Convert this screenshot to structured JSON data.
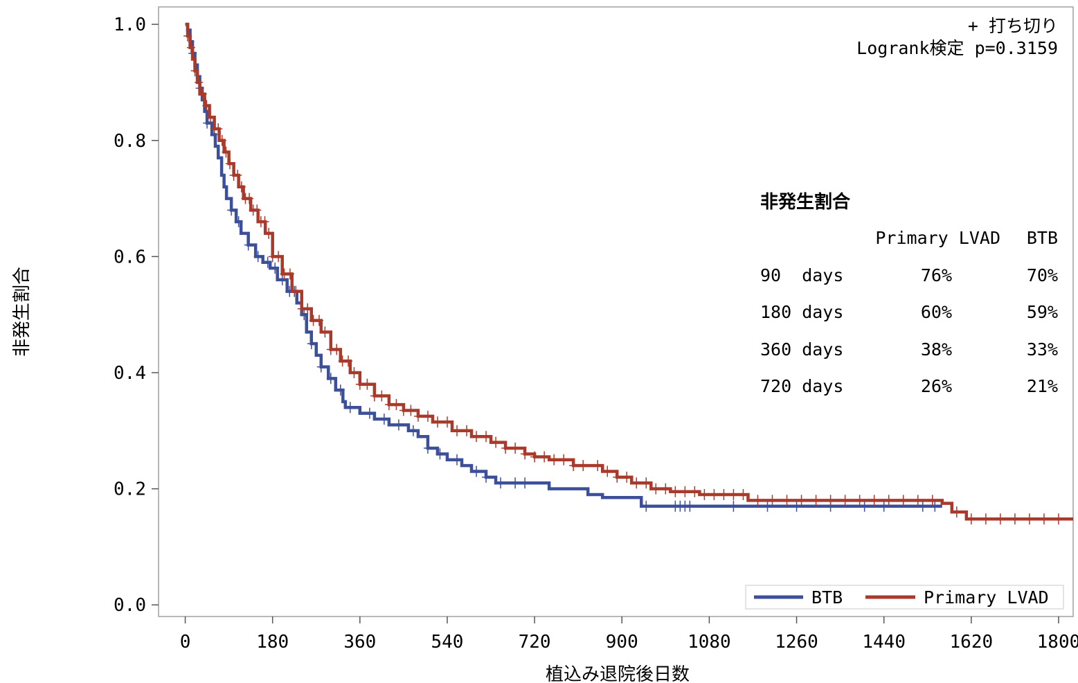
{
  "chart_data": {
    "type": "line",
    "xlabel": "植込み退院後日数",
    "ylabel": "非発生割合",
    "xlim": [
      -55,
      1830
    ],
    "ylim": [
      -0.02,
      1.03
    ],
    "x_ticks": [
      "0",
      "180",
      "360",
      "540",
      "720",
      "900",
      "1080",
      "1260",
      "1440",
      "1620",
      "1800"
    ],
    "y_ticks": [
      "0.0",
      "0.2",
      "0.4",
      "0.6",
      "0.8",
      "1.0"
    ],
    "censor_note": "+ 打ち切り",
    "test_note": "Logrank検定 p=0.3159",
    "legend": {
      "position": "bottom-right",
      "items": [
        "BTB",
        "Primary LVAD"
      ]
    },
    "table": {
      "title": "非発生割合",
      "headers": [
        "",
        "Primary LVAD",
        "BTB"
      ],
      "rows": [
        {
          "label": "90  days",
          "primary": "76%",
          "btb": "70%"
        },
        {
          "label": "180 days",
          "primary": "60%",
          "btb": "59%"
        },
        {
          "label": "360 days",
          "primary": "38%",
          "btb": "33%"
        },
        {
          "label": "720 days",
          "primary": "26%",
          "btb": "21%"
        }
      ]
    },
    "series": [
      {
        "name": "BTB",
        "color": "#3c4f9a",
        "points": [
          [
            0,
            1.0
          ],
          [
            5,
            0.99
          ],
          [
            10,
            0.97
          ],
          [
            15,
            0.95
          ],
          [
            20,
            0.93
          ],
          [
            25,
            0.91
          ],
          [
            30,
            0.89
          ],
          [
            35,
            0.87
          ],
          [
            40,
            0.85
          ],
          [
            45,
            0.83
          ],
          [
            55,
            0.81
          ],
          [
            62,
            0.79
          ],
          [
            68,
            0.77
          ],
          [
            75,
            0.74
          ],
          [
            80,
            0.72
          ],
          [
            85,
            0.7
          ],
          [
            95,
            0.68
          ],
          [
            105,
            0.66
          ],
          [
            115,
            0.64
          ],
          [
            130,
            0.62
          ],
          [
            145,
            0.6
          ],
          [
            160,
            0.59
          ],
          [
            175,
            0.58
          ],
          [
            190,
            0.56
          ],
          [
            210,
            0.54
          ],
          [
            230,
            0.52
          ],
          [
            240,
            0.5
          ],
          [
            250,
            0.47
          ],
          [
            260,
            0.45
          ],
          [
            270,
            0.43
          ],
          [
            280,
            0.41
          ],
          [
            295,
            0.39
          ],
          [
            310,
            0.37
          ],
          [
            325,
            0.35
          ],
          [
            330,
            0.34
          ],
          [
            360,
            0.33
          ],
          [
            390,
            0.32
          ],
          [
            420,
            0.31
          ],
          [
            460,
            0.3
          ],
          [
            480,
            0.29
          ],
          [
            500,
            0.27
          ],
          [
            520,
            0.26
          ],
          [
            540,
            0.25
          ],
          [
            570,
            0.24
          ],
          [
            590,
            0.23
          ],
          [
            620,
            0.22
          ],
          [
            640,
            0.21
          ],
          [
            750,
            0.2
          ],
          [
            830,
            0.19
          ],
          [
            860,
            0.185
          ],
          [
            940,
            0.17
          ],
          [
            1560,
            0.17
          ]
        ],
        "censored_x": [
          15,
          30,
          45,
          60,
          95,
          110,
          130,
          150,
          170,
          185,
          200,
          215,
          225,
          245,
          260,
          280,
          300,
          320,
          340,
          380,
          410,
          440,
          470,
          500,
          525,
          560,
          600,
          620,
          650,
          680,
          700,
          950,
          1010,
          1020,
          1030,
          1040,
          1130,
          1200,
          1260,
          1330,
          1400,
          1440,
          1520,
          1545
        ]
      },
      {
        "name": "Primary LVAD",
        "color": "#a93a2b",
        "points": [
          [
            0,
            1.0
          ],
          [
            5,
            0.98
          ],
          [
            10,
            0.96
          ],
          [
            15,
            0.94
          ],
          [
            20,
            0.92
          ],
          [
            25,
            0.9
          ],
          [
            30,
            0.88
          ],
          [
            40,
            0.86
          ],
          [
            50,
            0.84
          ],
          [
            60,
            0.82
          ],
          [
            70,
            0.8
          ],
          [
            80,
            0.78
          ],
          [
            90,
            0.76
          ],
          [
            100,
            0.74
          ],
          [
            110,
            0.72
          ],
          [
            120,
            0.7
          ],
          [
            135,
            0.68
          ],
          [
            150,
            0.66
          ],
          [
            165,
            0.64
          ],
          [
            180,
            0.6
          ],
          [
            200,
            0.57
          ],
          [
            220,
            0.54
          ],
          [
            240,
            0.51
          ],
          [
            260,
            0.49
          ],
          [
            280,
            0.47
          ],
          [
            300,
            0.44
          ],
          [
            320,
            0.42
          ],
          [
            340,
            0.4
          ],
          [
            360,
            0.38
          ],
          [
            390,
            0.36
          ],
          [
            420,
            0.345
          ],
          [
            450,
            0.335
          ],
          [
            480,
            0.325
          ],
          [
            510,
            0.315
          ],
          [
            550,
            0.3
          ],
          [
            590,
            0.29
          ],
          [
            630,
            0.28
          ],
          [
            660,
            0.27
          ],
          [
            700,
            0.26
          ],
          [
            720,
            0.255
          ],
          [
            750,
            0.25
          ],
          [
            800,
            0.24
          ],
          [
            860,
            0.23
          ],
          [
            890,
            0.22
          ],
          [
            920,
            0.21
          ],
          [
            960,
            0.2
          ],
          [
            1000,
            0.195
          ],
          [
            1060,
            0.19
          ],
          [
            1160,
            0.18
          ],
          [
            1560,
            0.175
          ],
          [
            1580,
            0.16
          ],
          [
            1610,
            0.148
          ],
          [
            1830,
            0.148
          ]
        ],
        "censored_x": [
          5,
          12,
          20,
          28,
          36,
          44,
          52,
          60,
          68,
          76,
          84,
          92,
          100,
          108,
          116,
          124,
          132,
          140,
          148,
          156,
          164,
          172,
          180,
          192,
          204,
          216,
          228,
          240,
          252,
          264,
          276,
          288,
          300,
          312,
          324,
          336,
          348,
          360,
          375,
          390,
          405,
          420,
          435,
          450,
          465,
          480,
          500,
          520,
          540,
          560,
          580,
          600,
          620,
          640,
          660,
          680,
          700,
          720,
          740,
          760,
          780,
          800,
          820,
          850,
          870,
          890,
          910,
          930,
          950,
          970,
          990,
          1010,
          1030,
          1050,
          1070,
          1090,
          1110,
          1130,
          1150,
          1180,
          1210,
          1240,
          1270,
          1300,
          1330,
          1360,
          1390,
          1420,
          1450,
          1480,
          1510,
          1540,
          1590,
          1620,
          1650,
          1680,
          1710,
          1740,
          1770,
          1800
        ]
      }
    ]
  }
}
